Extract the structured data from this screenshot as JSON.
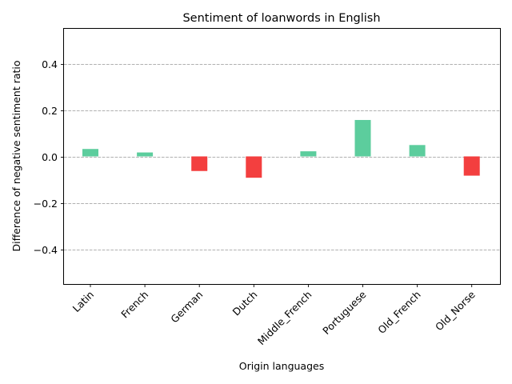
{
  "chart_data": {
    "type": "bar",
    "title": "Sentiment of loanwords in English",
    "xlabel": "Origin languages",
    "ylabel": "Difference of negative sentiment ratio",
    "categories": [
      "Latin",
      "French",
      "German",
      "Dutch",
      "Middle_French",
      "Portuguese",
      "Old_French",
      "Old_Norse"
    ],
    "values": [
      0.032,
      0.017,
      -0.063,
      -0.092,
      0.022,
      0.157,
      0.049,
      -0.083
    ],
    "ylim": [
      -0.55,
      0.55
    ],
    "yticks": [
      -0.4,
      -0.2,
      0.0,
      0.2,
      0.4
    ],
    "ytick_labels": [
      "−0.4",
      "−0.2",
      "0.0",
      "0.2",
      "0.4"
    ],
    "grid": true,
    "grid_axis": "y",
    "colors": {
      "positive": "#5ccd9d",
      "negative": "#f33f3f"
    }
  }
}
